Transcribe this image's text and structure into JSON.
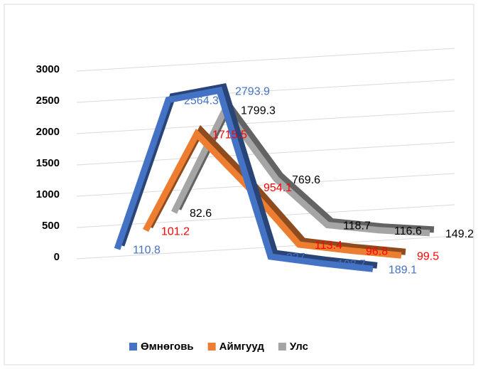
{
  "chart_data": {
    "type": "line3d",
    "categories": [
      null,
      null,
      null,
      null,
      null,
      null
    ],
    "series": [
      {
        "name": "Өмнөговь",
        "color": "#4472c4",
        "label_color": "#4472c4",
        "values": [
          110.8,
          2564.3,
          2793.9,
          227,
          198.7,
          189.1
        ]
      },
      {
        "name": "Аймгууд",
        "color": "#ed7d31",
        "label_color": "#ff0000",
        "values": [
          101.2,
          1715.5,
          954.1,
          113.4,
          96.8,
          99.5
        ]
      },
      {
        "name": "Улс",
        "color": "#a5a5a5",
        "label_color": "#000000",
        "values": [
          82.6,
          1799.3,
          769.6,
          118.7,
          116.6,
          149.2
        ]
      }
    ],
    "ylim": [
      0,
      3000
    ],
    "yticks": [
      0,
      500,
      1000,
      1500,
      2000,
      2500,
      3000
    ],
    "grid": true,
    "legend": "bottom"
  }
}
